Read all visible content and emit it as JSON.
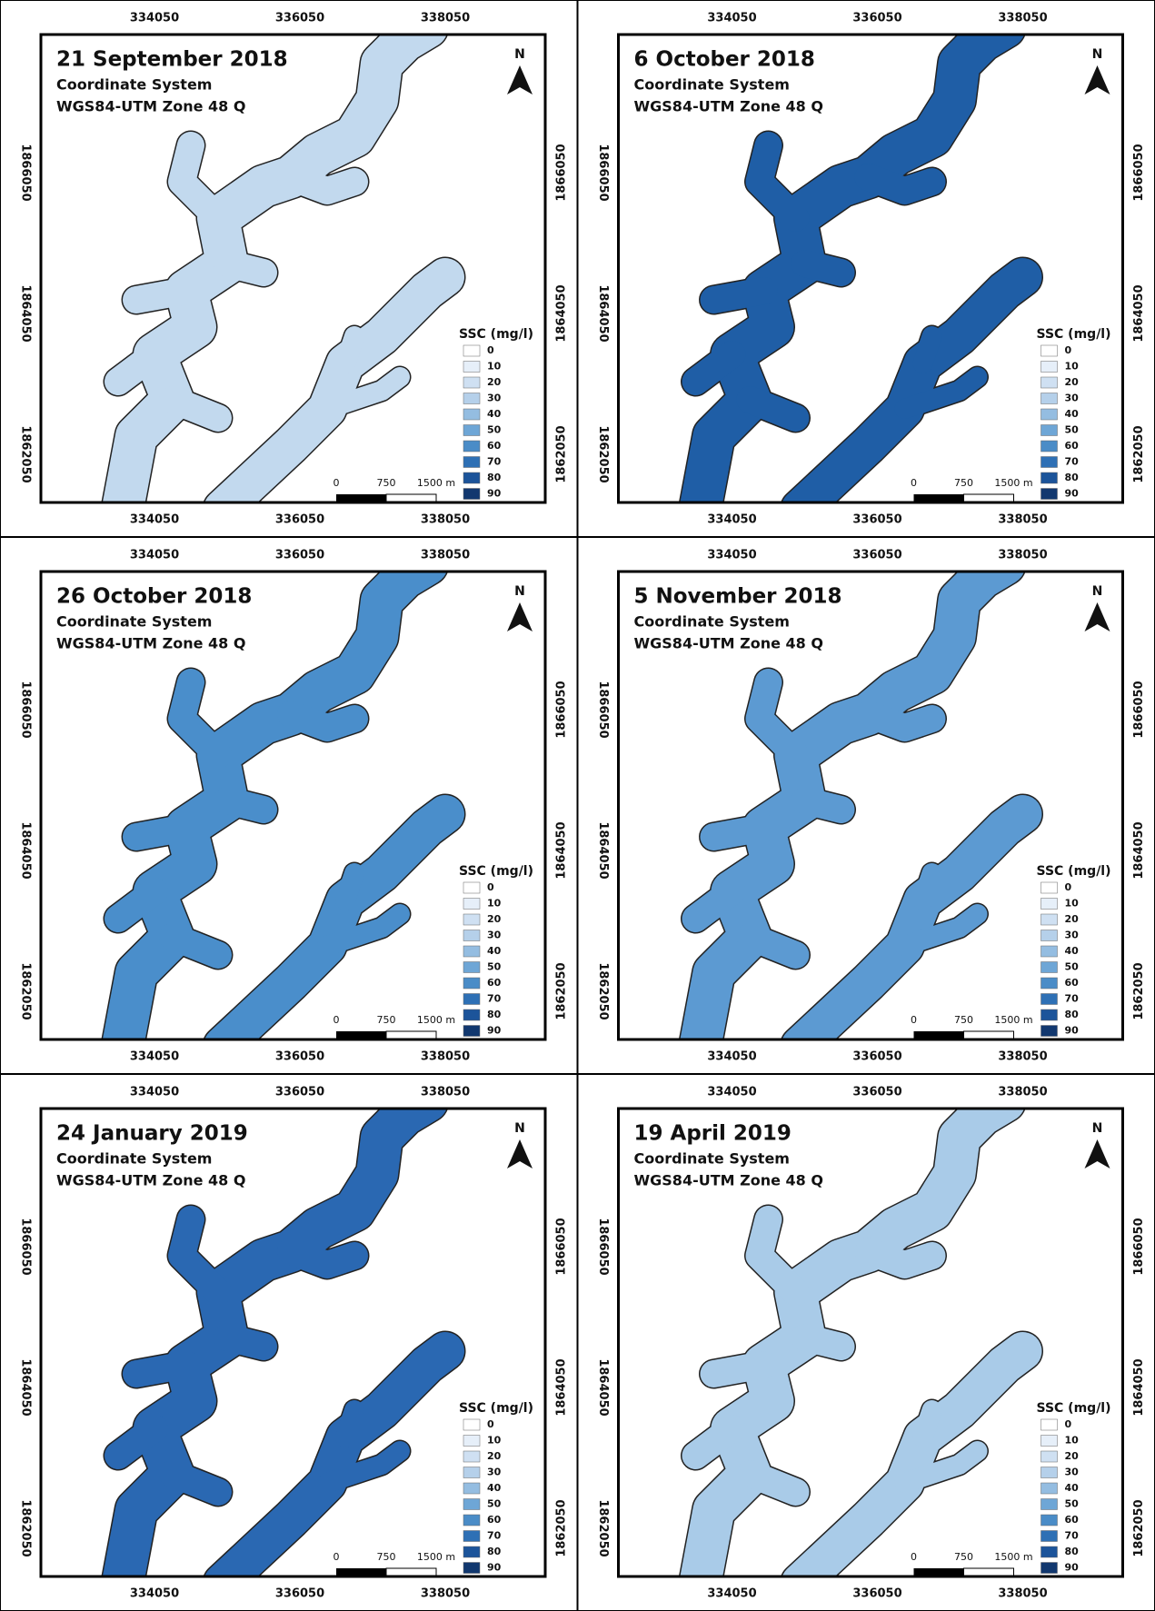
{
  "common": {
    "coordinate_label": "Coordinate System",
    "crs": "WGS84-UTM Zone 48 Q",
    "north": "N",
    "x_labels": [
      "334050",
      "336050",
      "338050"
    ],
    "y_labels": [
      "1866050",
      "1864050",
      "1862050"
    ],
    "legend_title": "SSC (mg/l)",
    "legend": [
      "0",
      "10",
      "20",
      "30",
      "40",
      "50",
      "60",
      "70",
      "80",
      "90"
    ],
    "legend_colors": [
      "#ffffff",
      "#e6eff9",
      "#cfe0f2",
      "#b5d0ea",
      "#94bde1",
      "#6ea6d6",
      "#4a8cc7",
      "#2e70b5",
      "#1c549a",
      "#12386f"
    ],
    "scale": [
      "0",
      "750",
      "1500 m"
    ]
  },
  "panels": [
    {
      "date": "21 September 2018",
      "water_color": "#c2d9ee"
    },
    {
      "date": "6 October 2018",
      "water_color": "#1f5ea6"
    },
    {
      "date": "26 October 2018",
      "water_color": "#4a8ecb"
    },
    {
      "date": "5 November 2018",
      "water_color": "#5c9ad2"
    },
    {
      "date": "24 January 2019",
      "water_color": "#2a68b2"
    },
    {
      "date": "19 April 2019",
      "water_color": "#a9cbe8"
    }
  ]
}
